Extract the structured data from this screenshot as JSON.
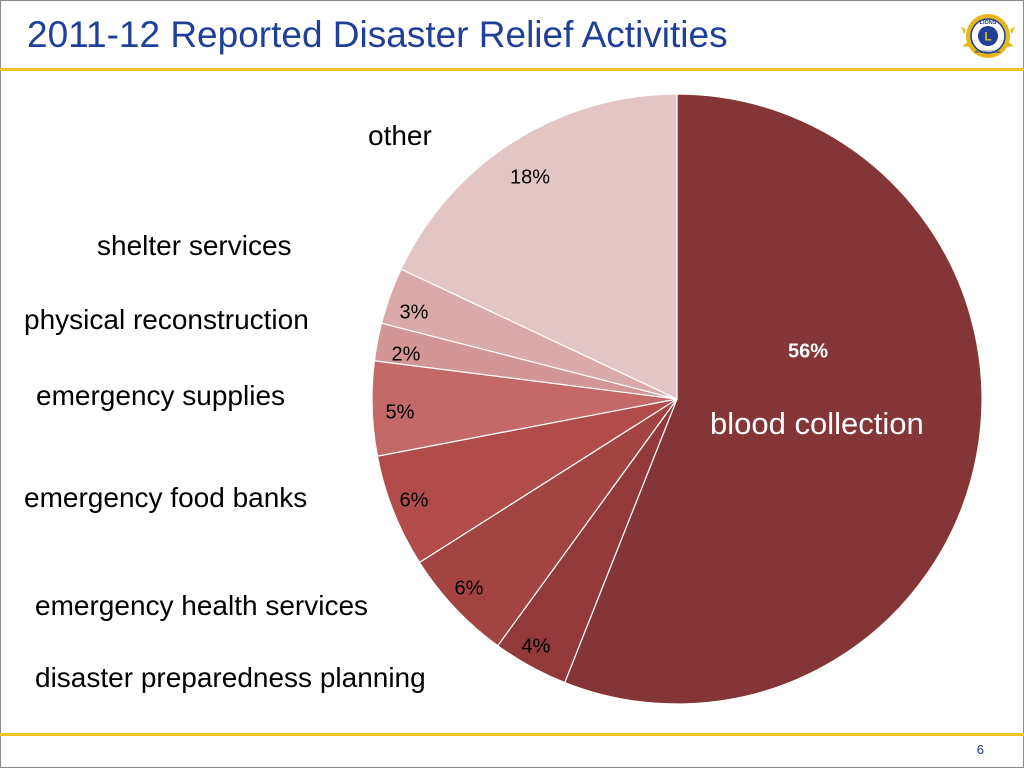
{
  "slide": {
    "title": "2011-12 Reported Disaster Relief Activities",
    "page_number": "6"
  },
  "logo": {
    "icon": "lions-international-logo",
    "text_top": "LIONS",
    "letter": "L",
    "text_bottom": "INTERNATIONAL"
  },
  "chart_data": {
    "type": "pie",
    "title": "",
    "slices": [
      {
        "label": "blood collection",
        "value": 56,
        "value_label": "56%",
        "color": "#843536"
      },
      {
        "label": "disaster preparedness planning",
        "value": 4,
        "value_label": "4%",
        "color": "#923a3a"
      },
      {
        "label": "emergency health services",
        "value": 6,
        "value_label": "6%",
        "color": "#a34442"
      },
      {
        "label": "emergency food banks",
        "value": 6,
        "value_label": "6%",
        "color": "#b24c4a"
      },
      {
        "label": "emergency supplies",
        "value": 5,
        "value_label": "5%",
        "color": "#c36a69"
      },
      {
        "label": "physical reconstruction",
        "value": 2,
        "value_label": "2%",
        "color": "#d49695"
      },
      {
        "label": "shelter services",
        "value": 3,
        "value_label": "3%",
        "color": "#daaaaa"
      },
      {
        "label": "other",
        "value": 18,
        "value_label": "18%",
        "color": "#e4c5c6"
      }
    ],
    "start_angle": "12 o'clock",
    "direction": "clockwise",
    "legend": "none"
  }
}
